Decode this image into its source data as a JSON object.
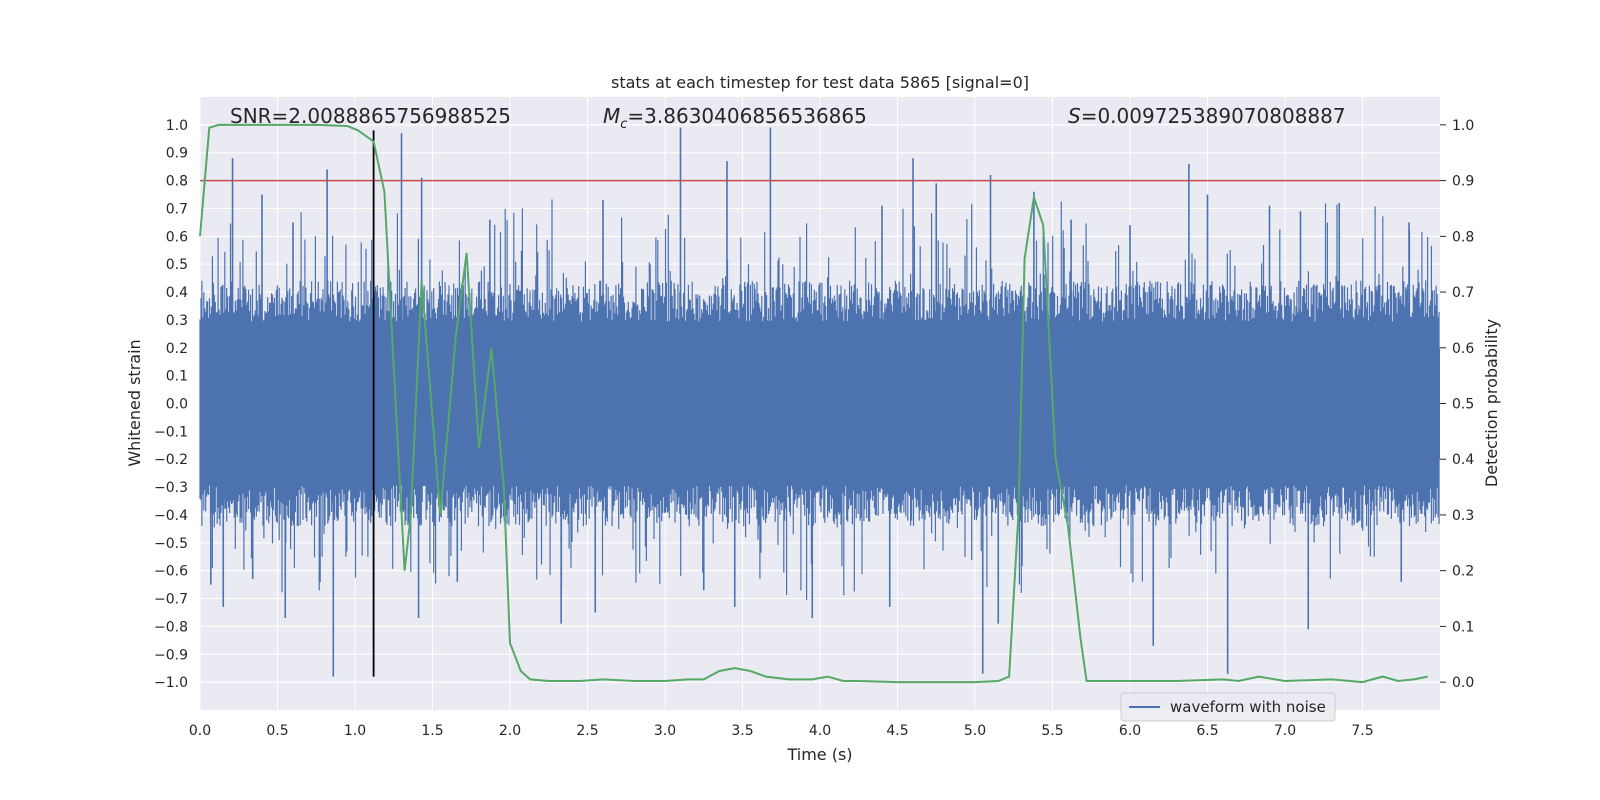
{
  "chart_data": {
    "type": "line",
    "title": "stats at each timestep for test data 5865 [signal=0]",
    "xlabel": "Time (s)",
    "ylabel": "Whitened strain",
    "y2label": "Detection probability",
    "xlim": [
      0.0,
      8.0
    ],
    "ylim": [
      -1.1,
      1.1
    ],
    "y2lim": [
      -0.05,
      1.05
    ],
    "x_ticks": [
      0.0,
      0.5,
      1.0,
      1.5,
      2.0,
      2.5,
      3.0,
      3.5,
      4.0,
      4.5,
      5.0,
      5.5,
      6.0,
      6.5,
      7.0,
      7.5
    ],
    "x_tick_labels": [
      "0.0",
      "0.5",
      "1.0",
      "1.5",
      "2.0",
      "2.5",
      "3.0",
      "3.5",
      "4.0",
      "4.5",
      "5.0",
      "5.5",
      "6.0",
      "6.5",
      "7.0",
      "7.5"
    ],
    "y_ticks": [
      1.0,
      0.9,
      0.8,
      0.7,
      0.6,
      0.5,
      0.4,
      0.3,
      0.2,
      0.1,
      0.0,
      -0.1,
      -0.2,
      -0.3,
      -0.4,
      -0.5,
      -0.6,
      -0.7,
      -0.8,
      -0.9,
      -1.0
    ],
    "y_tick_labels": [
      "1.0",
      "0.9",
      "0.8",
      "0.7",
      "0.6",
      "0.5",
      "0.4",
      "0.3",
      "0.2",
      "0.1",
      "0.0",
      "−0.1",
      "−0.2",
      "−0.3",
      "−0.4",
      "−0.5",
      "−0.6",
      "−0.7",
      "−0.8",
      "−0.9",
      "−1.0"
    ],
    "y2_ticks": [
      1.0,
      0.9,
      0.8,
      0.7,
      0.6,
      0.5,
      0.4,
      0.3,
      0.2,
      0.1,
      0.0
    ],
    "y2_tick_labels": [
      "1.0",
      "0.9",
      "0.8",
      "0.7",
      "0.6",
      "0.5",
      "0.4",
      "0.3",
      "0.2",
      "0.1",
      "0.0"
    ],
    "grid": true,
    "legend": {
      "entries": [
        "waveform with noise"
      ],
      "placement": "lower-right"
    },
    "annotations": {
      "snr": "SNR=2.0088865756988525",
      "mc_symbol": "M",
      "mc_sub": "c",
      "mc_value": "=3.8630406856536865",
      "s_symbol": "S",
      "s_value": "=0.009725389070808887"
    },
    "threshold": {
      "axis": "right",
      "value": 0.9
    },
    "vertical_marker": {
      "x": 1.12,
      "ymin": -0.98,
      "ymax": 0.98
    },
    "waveform": {
      "name": "waveform with noise",
      "dense_band": [
        -0.2,
        0.2
      ],
      "typical_envelope": 0.42,
      "peaks_positive": [
        [
          0.21,
          0.88
        ],
        [
          0.4,
          0.75
        ],
        [
          0.6,
          0.65
        ],
        [
          0.82,
          0.84
        ],
        [
          1.3,
          0.97
        ],
        [
          1.43,
          0.81
        ],
        [
          1.87,
          0.66
        ],
        [
          2.6,
          0.73
        ],
        [
          3.1,
          0.99
        ],
        [
          3.4,
          0.87
        ],
        [
          3.68,
          0.99
        ],
        [
          4.4,
          0.71
        ],
        [
          4.6,
          0.88
        ],
        [
          4.75,
          0.79
        ],
        [
          5.1,
          0.82
        ],
        [
          5.38,
          0.76
        ],
        [
          5.62,
          0.66
        ],
        [
          6.0,
          0.64
        ],
        [
          6.38,
          0.86
        ],
        [
          6.5,
          0.75
        ],
        [
          6.9,
          0.71
        ],
        [
          7.1,
          0.69
        ],
        [
          7.35,
          0.72
        ],
        [
          7.8,
          0.65
        ]
      ],
      "peaks_negative": [
        [
          0.07,
          -0.65
        ],
        [
          0.15,
          -0.73
        ],
        [
          0.34,
          -0.63
        ],
        [
          0.55,
          -0.77
        ],
        [
          0.86,
          -0.98
        ],
        [
          1.12,
          -0.86
        ],
        [
          1.41,
          -0.77
        ],
        [
          1.66,
          -0.64
        ],
        [
          2.33,
          -0.79
        ],
        [
          2.55,
          -0.75
        ],
        [
          3.25,
          -0.67
        ],
        [
          3.45,
          -0.73
        ],
        [
          3.95,
          -0.77
        ],
        [
          4.45,
          -0.73
        ],
        [
          5.05,
          -0.97
        ],
        [
          5.15,
          -0.79
        ],
        [
          6.15,
          -0.87
        ],
        [
          6.63,
          -0.97
        ],
        [
          7.15,
          -0.81
        ],
        [
          7.75,
          -0.64
        ]
      ]
    },
    "detection_probability": {
      "x": [
        0.0,
        0.06,
        0.12,
        0.25,
        0.5,
        0.75,
        0.95,
        1.02,
        1.07,
        1.12,
        1.19,
        1.32,
        1.36,
        1.43,
        1.55,
        1.65,
        1.72,
        1.8,
        1.88,
        1.96,
        2.0,
        2.07,
        2.13,
        2.25,
        2.45,
        2.6,
        2.8,
        3.0,
        3.15,
        3.25,
        3.35,
        3.45,
        3.55,
        3.65,
        3.8,
        3.95,
        4.05,
        4.15,
        4.25,
        4.5,
        4.8,
        5.0,
        5.15,
        5.22,
        5.28,
        5.32,
        5.38,
        5.44,
        5.52,
        5.6,
        5.68,
        5.72,
        5.78,
        6.0,
        6.3,
        6.6,
        6.7,
        6.83,
        7.0,
        7.3,
        7.5,
        7.63,
        7.73,
        7.83,
        7.92
      ],
      "y": [
        0.8,
        0.995,
        1.0,
        1.0,
        1.0,
        1.0,
        0.998,
        0.99,
        0.98,
        0.97,
        0.88,
        0.2,
        0.3,
        0.72,
        0.3,
        0.62,
        0.77,
        0.42,
        0.6,
        0.35,
        0.07,
        0.02,
        0.005,
        0.002,
        0.002,
        0.005,
        0.002,
        0.002,
        0.005,
        0.005,
        0.02,
        0.025,
        0.02,
        0.01,
        0.005,
        0.005,
        0.01,
        0.002,
        0.002,
        0.0,
        0.0,
        0.0,
        0.002,
        0.01,
        0.3,
        0.76,
        0.87,
        0.82,
        0.4,
        0.28,
        0.08,
        0.002,
        0.002,
        0.002,
        0.002,
        0.005,
        0.002,
        0.01,
        0.002,
        0.005,
        0.0,
        0.01,
        0.002,
        0.005,
        0.01
      ]
    },
    "colors": {
      "plot_background": "#eaeaf2",
      "grid": "#ffffff",
      "waveform": "#4c72b0",
      "detection_probability": "#55a868",
      "threshold": "#c44e52",
      "vertical_marker": "#000000",
      "text": "#262626"
    }
  }
}
